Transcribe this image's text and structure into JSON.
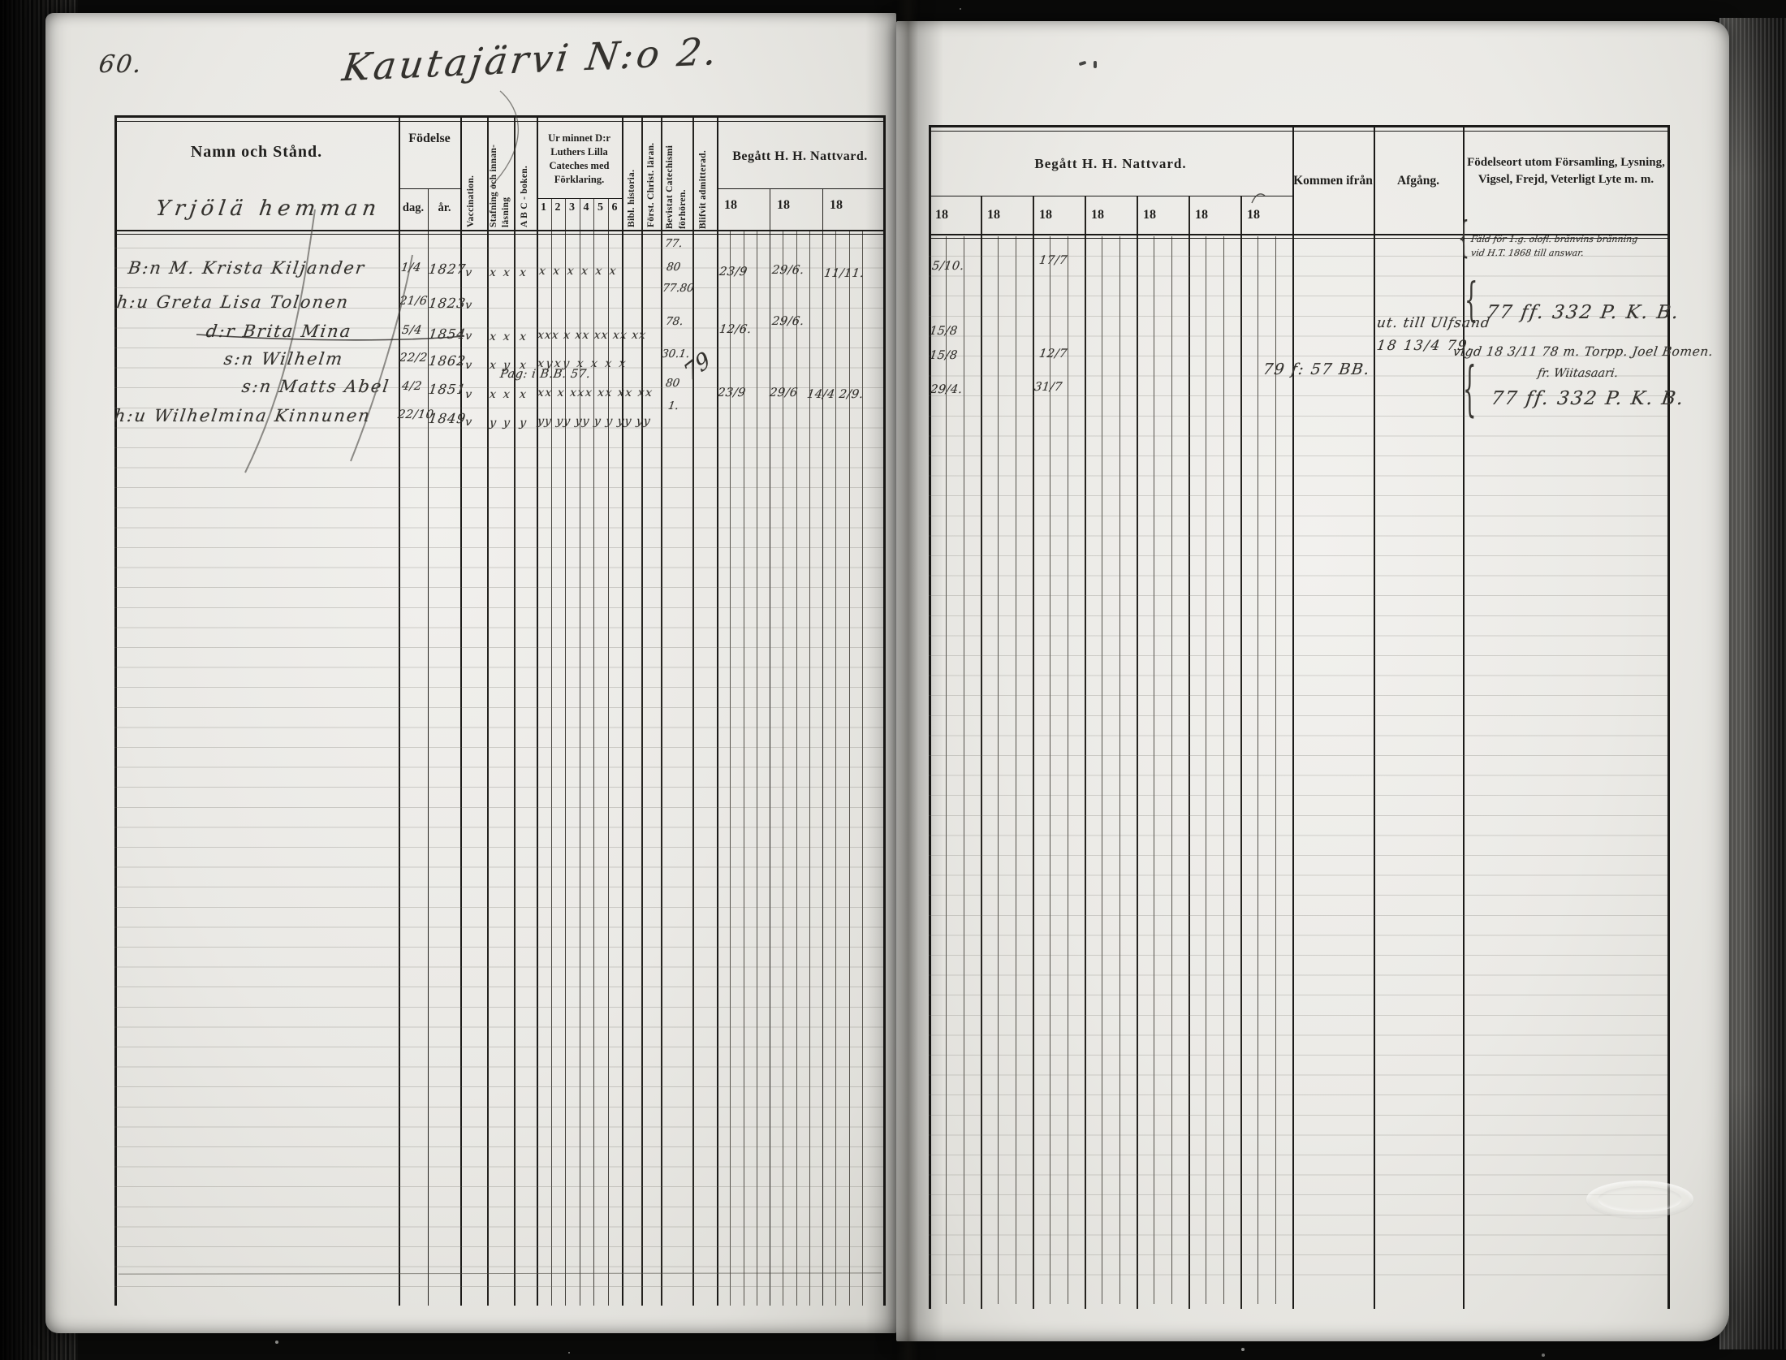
{
  "page": {
    "number": "60.",
    "title": "Kautajärvi N:o 2."
  },
  "left_table": {
    "headers": {
      "name": "Namn och Stånd.",
      "birth": "Födelse",
      "birth_day": "dag.",
      "birth_year": "år.",
      "vaccination": "Vaccination.",
      "spelling_1": "Stafning och innan-",
      "spelling_2": "läsning",
      "abc_book": "A B C - boken.",
      "catechism_group": "Ur minnet D:r Luthers Lilla Cateches med Förklaring.",
      "catechism_cols": [
        "1",
        "2",
        "3",
        "4",
        "5",
        "6"
      ],
      "bible_history": "Bibl. historia.",
      "christian_doctrine": "Först. Christ. läran.",
      "exams_1": "Bevistat Catechismi",
      "exams_2": "förhören.",
      "admitted": "Blifvit admitterad.",
      "communion": "Begått H. H. Nattvard.",
      "communion_years": [
        "18",
        "18",
        "18"
      ]
    },
    "farm_name": "Yrjölä hemman",
    "exam_top_note": "77.",
    "admitted_note": "79",
    "rows": [
      {
        "name": "B:n M. Krista Kiljander",
        "day": "1/4",
        "year": "1827",
        "vacc": "v",
        "staf": "xx",
        "abc": "x",
        "cat": "x x x x x x",
        "exam_a": "80",
        "exam_b": "77.80",
        "comm1": "23/9",
        "comm2": "29/6.",
        "comm3": "11/11."
      },
      {
        "name": "h:u Greta Lisa Tolonen",
        "day": "21/6",
        "year": "1823",
        "vacc": "v",
        "exam_a": "78.",
        "comm1": "12/6.",
        "comm2": "29/6."
      },
      {
        "name": "d:r Brita Mina",
        "day": "5/4",
        "year": "1854",
        "vacc": "v",
        "staf": "xx",
        "abc": "x",
        "cat": "xxx x xx xx xx xx",
        "exam_a": "30.1."
      },
      {
        "name": "s:n Wilhelm",
        "day": "22/2",
        "year": "1862",
        "vacc": "v",
        "staf": "xy",
        "abc": "x",
        "cat": "xyxy x x x x",
        "exam_a": "80"
      },
      {
        "name": "s:n Matts Abel",
        "day": "4/2",
        "year": "1851",
        "vacc": "v",
        "staf": "xx",
        "abc": "x",
        "cat": "xx x xxx xx xx xx",
        "page_note": "Pag: i B.B. 57.",
        "exam_a": "1.",
        "comm1": "23/9",
        "comm2": "29/6",
        "comm3": "14/4 2/9."
      },
      {
        "name": "h:u Wilhelmina Kinnunen",
        "day": "22/10",
        "year": "1849",
        "vacc": "v",
        "staf": "yy",
        "abc": "y",
        "cat": "yy yy yy y y yy yy"
      }
    ]
  },
  "right_table": {
    "headers": {
      "communion": "Begått H. H. Nattvard.",
      "communion_years": [
        "18",
        "18",
        "18",
        "18",
        "18",
        "18",
        "18"
      ],
      "come_from": "Kommen ifrån",
      "departure": "Afgång.",
      "notes": "Födelseort utom Församling, Lysning, Vigsel, Frejd, Veterligt Lyte m. m."
    },
    "entries": {
      "r1_c1": "5/10.",
      "r1_c3": "17/7",
      "r3_c1a": "15/8",
      "r3_c1b": "15/8",
      "r3_c3": "12/7",
      "r5_c1": "29/4.",
      "r5_c3": "31/7",
      "come_from_note": "79 f: 57 BB.",
      "departure_note_1": "ut. till Ulfsand",
      "departure_note_2": "18 13/4 79.",
      "fine_note_1": "Fäld för 1:g. olofl. bränvins bränning",
      "fine_note_2": "vid H.T. 1868 till answar.",
      "ref_note_1": "77 ff. 332 P. K. B.",
      "marriage_note_1": "vigd 18 3/11 78 m. Torpp. Joel Bomen.",
      "marriage_note_2": "fr. Wiitasaari.",
      "ref_note_2": "77 ff. 332 P. K. B."
    }
  }
}
